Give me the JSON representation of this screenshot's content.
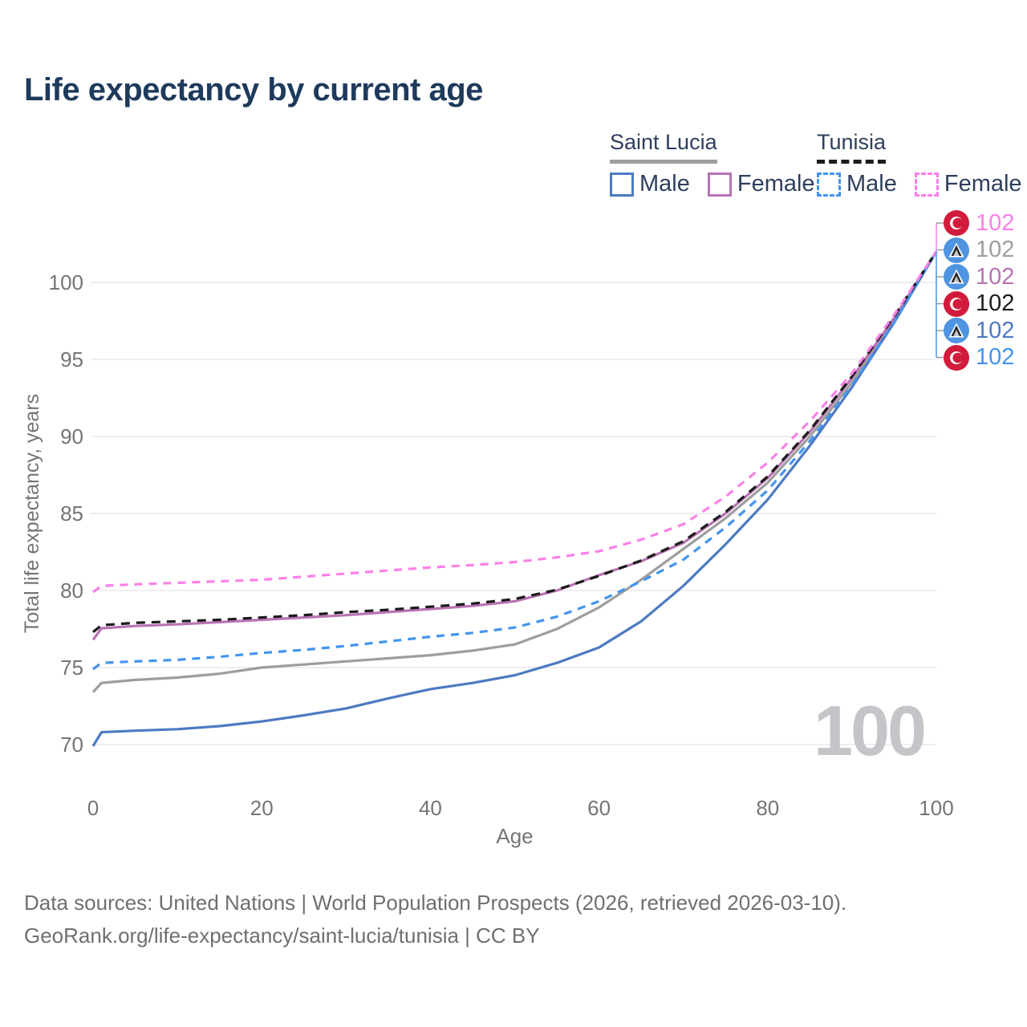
{
  "title": "Life expectancy by current age",
  "legend": {
    "groups": [
      {
        "country": "Saint Lucia",
        "line_style": "solid",
        "underline_color": "#9e9e9e",
        "items": [
          {
            "label": "Male",
            "color": "#4d7ac2"
          },
          {
            "label": "Female",
            "color": "#b973b3"
          }
        ]
      },
      {
        "country": "Tunisia",
        "line_style": "dashed",
        "underline_color": "#1c1c1c",
        "items": [
          {
            "label": "Male",
            "color": "#4295ef"
          },
          {
            "label": "Female",
            "color": "#fb80e7"
          }
        ]
      }
    ]
  },
  "chart_data": {
    "type": "line",
    "title": "Life expectancy by current age",
    "xlabel": "Age",
    "ylabel": "Total life expectancy, years",
    "xlim": [
      0,
      100
    ],
    "ylim": [
      69.5,
      102.5
    ],
    "x_ticks": [
      0,
      20,
      40,
      60,
      80,
      100
    ],
    "y_ticks": [
      70,
      75,
      80,
      85,
      90,
      95,
      100
    ],
    "grid": "horizontal-only",
    "legend_position": "top-right",
    "x": [
      0,
      1,
      5,
      10,
      15,
      20,
      25,
      30,
      35,
      40,
      45,
      50,
      55,
      60,
      65,
      70,
      75,
      80,
      85,
      90,
      95,
      100
    ],
    "series": [
      {
        "name": "Saint Lucia Total",
        "country": "Saint Lucia",
        "sex": "both",
        "color": "#9e9e9e",
        "dash": null,
        "values": [
          73.4,
          74.0,
          74.2,
          74.35,
          74.6,
          75.0,
          75.2,
          75.4,
          75.6,
          75.8,
          76.1,
          76.5,
          77.5,
          78.9,
          80.7,
          82.7,
          84.7,
          87.0,
          90.0,
          93.5,
          97.5,
          102
        ],
        "end_value": 102
      },
      {
        "name": "Saint Lucia Female",
        "country": "Saint Lucia",
        "sex": "female",
        "color": "#b973b3",
        "dash": null,
        "values": [
          76.8,
          77.55,
          77.7,
          77.8,
          77.95,
          78.1,
          78.25,
          78.4,
          78.6,
          78.8,
          79.0,
          79.3,
          80.0,
          81.0,
          81.9,
          83.1,
          85.0,
          87.3,
          90.3,
          93.8,
          97.7,
          102
        ],
        "end_value": 102
      },
      {
        "name": "Saint Lucia Male",
        "country": "Saint Lucia",
        "sex": "male",
        "color": "#4d7ac2",
        "dash": null,
        "values": [
          69.9,
          70.8,
          70.9,
          71.0,
          71.2,
          71.5,
          71.9,
          72.35,
          73.0,
          73.6,
          74.0,
          74.5,
          75.3,
          76.3,
          78.0,
          80.3,
          83.0,
          85.9,
          89.4,
          93.2,
          97.4,
          102
        ],
        "end_value": 102
      },
      {
        "name": "Tunisia Male",
        "country": "Tunisia",
        "sex": "male",
        "color": "#4295ef",
        "dash": "10 8",
        "values": [
          74.9,
          75.3,
          75.4,
          75.5,
          75.7,
          75.95,
          76.15,
          76.4,
          76.7,
          77.0,
          77.25,
          77.6,
          78.3,
          79.3,
          80.6,
          82.0,
          84.1,
          86.5,
          89.7,
          93.3,
          97.4,
          102
        ],
        "end_value": 102
      },
      {
        "name": "Tunisia Total",
        "country": "Tunisia",
        "sex": "both",
        "color": "#1c1c1c",
        "dash": "11 8",
        "values": [
          77.3,
          77.75,
          77.9,
          78.0,
          78.1,
          78.25,
          78.4,
          78.6,
          78.75,
          78.95,
          79.15,
          79.45,
          80.05,
          80.95,
          81.95,
          83.2,
          85.1,
          87.4,
          90.4,
          93.9,
          97.8,
          102
        ],
        "end_value": 102
      },
      {
        "name": "Tunisia Female",
        "country": "Tunisia",
        "sex": "female",
        "color": "#fb80e7",
        "dash": "10 8",
        "values": [
          79.9,
          80.3,
          80.4,
          80.5,
          80.6,
          80.7,
          80.9,
          81.1,
          81.3,
          81.5,
          81.65,
          81.85,
          82.15,
          82.55,
          83.3,
          84.3,
          86.1,
          88.3,
          91.0,
          94.1,
          97.9,
          102
        ],
        "end_value": 102
      }
    ]
  },
  "end_labels": [
    {
      "value": "102",
      "flag": "tunisia",
      "color": "#fb80e7",
      "series": "Tunisia Female"
    },
    {
      "value": "102",
      "flag": "saint-lucia",
      "color": "#9e9e9e",
      "series": "Saint Lucia Total"
    },
    {
      "value": "102",
      "flag": "saint-lucia",
      "color": "#b973b3",
      "series": "Saint Lucia Female"
    },
    {
      "value": "102",
      "flag": "tunisia",
      "color": "#1c1c1c",
      "series": "Tunisia Total"
    },
    {
      "value": "102",
      "flag": "saint-lucia",
      "color": "#4d7ac2",
      "series": "Saint Lucia Male"
    },
    {
      "value": "102",
      "flag": "tunisia",
      "color": "#4295ef",
      "series": "Tunisia Male"
    }
  ],
  "watermark": "100",
  "footer": {
    "line1": "Data sources: United Nations | World Population Prospects (2026, retrieved 2026-03-10).",
    "line2": "GeoRank.org/life-expectancy/saint-lucia/tunisia | CC BY"
  },
  "colors": {
    "title_text": "#1e3a5c",
    "axis_text": "#757575",
    "gridline": "#e9e9eb",
    "watermark_text": "#c5c5c9",
    "footer_text": "#6f6f6f",
    "tunisia_flag_red": "#d21b3c",
    "saint_lucia_flag_blue": "#4f94e0"
  }
}
